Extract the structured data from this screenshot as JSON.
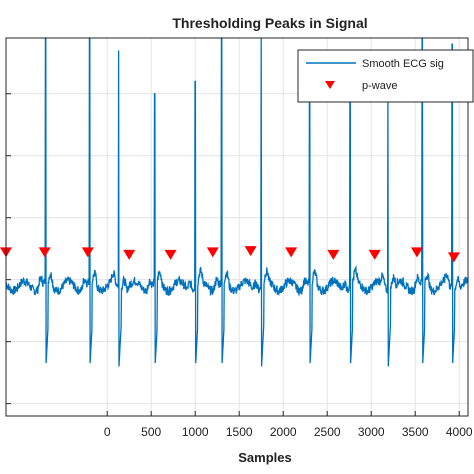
{
  "chart_data": {
    "type": "line",
    "title": "Thresholding Peaks in Signal",
    "xlabel": "Samples",
    "ylabel": "",
    "xticks": [
      0,
      500,
      1000,
      1500,
      2000,
      2500,
      3000,
      3500,
      4000
    ],
    "xlim": [
      -1150,
      4100
    ],
    "ylim": [
      -1.1,
      1.95
    ],
    "grid": true,
    "legend_position": "top-right",
    "colors": {
      "signal": "#0072BD",
      "marker": "#FF0000"
    },
    "series": [
      {
        "name": "Smooth ECG sig",
        "kind": "line",
        "beats_x": [
          -700,
          -200,
          130,
          540,
          1000,
          1300,
          1750,
          2300,
          2760,
          3190,
          3580,
          3920
        ],
        "beats_peak": [
          1.95,
          1.95,
          1.85,
          1.5,
          1.6,
          1.95,
          1.95,
          1.5,
          1.55,
          1.55,
          1.95,
          1.9
        ],
        "baseline": -0.05
      },
      {
        "name": "p-wave",
        "kind": "marker",
        "x": [
          -1150,
          -710,
          -220,
          250,
          720,
          1200,
          1630,
          2090,
          2570,
          3040,
          3520,
          3940
        ],
        "y": [
          0.22,
          0.22,
          0.22,
          0.2,
          0.2,
          0.22,
          0.23,
          0.22,
          0.2,
          0.2,
          0.22,
          0.18
        ]
      }
    ]
  }
}
